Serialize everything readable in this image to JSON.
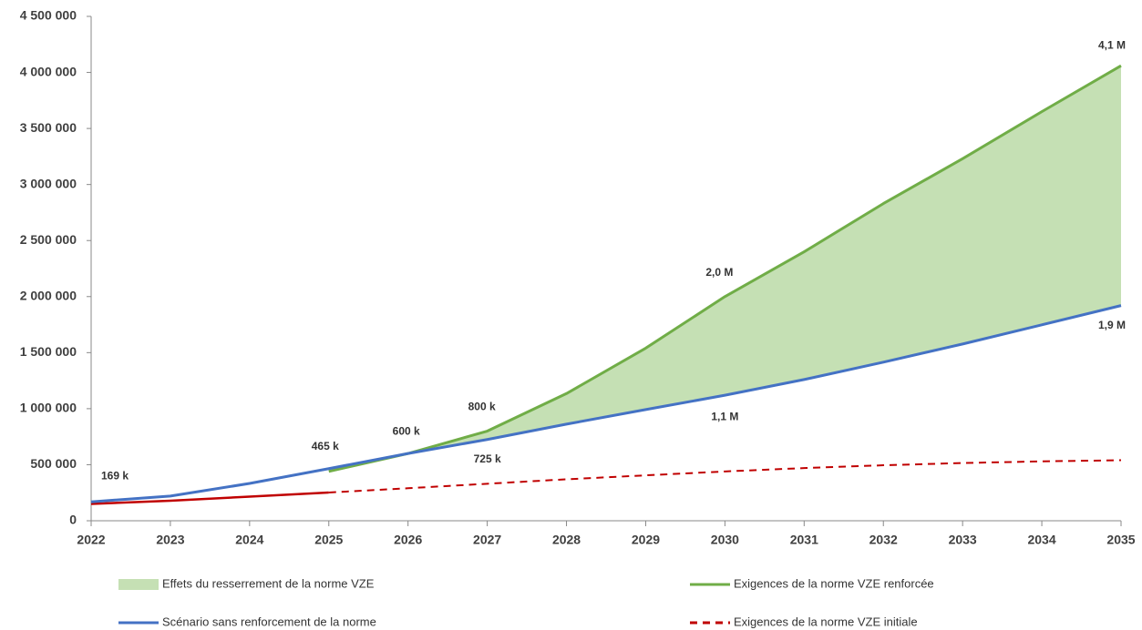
{
  "chart_data": {
    "type": "line",
    "x": [
      2022,
      2023,
      2024,
      2025,
      2026,
      2027,
      2028,
      2029,
      2030,
      2031,
      2032,
      2033,
      2034,
      2035
    ],
    "xlim": [
      2022,
      2035
    ],
    "xticks": [
      2022,
      2023,
      2024,
      2025,
      2026,
      2027,
      2028,
      2029,
      2030,
      2031,
      2032,
      2033,
      2034,
      2035
    ],
    "ylim": [
      0,
      4500000
    ],
    "yticks": [
      0,
      {
        "value": 500000,
        "label": "500 000"
      },
      {
        "value": 1000000,
        "label": "1 000 000"
      },
      {
        "value": 1500000,
        "label": "1 500 000"
      },
      {
        "value": 2000000,
        "label": "2 000 000"
      },
      {
        "value": 2500000,
        "label": "2 500 000"
      },
      {
        "value": 3000000,
        "label": "3 000 000"
      },
      {
        "value": 3500000,
        "label": "3 500 000"
      },
      {
        "value": 4000000,
        "label": "4 000 000"
      },
      {
        "value": 4500000,
        "label": "4 500 000"
      }
    ],
    "series": [
      {
        "name": "Effets du resserrement de la norme VZE",
        "color": "#c5e0b4",
        "type": "area"
      },
      {
        "name": "Exigences de la norme VZE renforcée",
        "color": "#70ad47",
        "values": [
          null,
          null,
          null,
          440000,
          600000,
          800000,
          1135000,
          1540000,
          2000000,
          2400000,
          2830000,
          3230000,
          3650000,
          4060000
        ],
        "value_labels": [
          null,
          null,
          null,
          null,
          null,
          "800 k",
          null,
          null,
          "2,0 M",
          null,
          null,
          null,
          null,
          "4,1 M"
        ]
      },
      {
        "name": "Scénario sans renforcement de la norme",
        "color": "#4472c4",
        "values": [
          169000,
          220000,
          333000,
          465000,
          600000,
          725000,
          862000,
          992000,
          1120000,
          1260000,
          1415000,
          1577000,
          1748000,
          1920000
        ],
        "value_labels": [
          "169 k",
          null,
          null,
          "465 k",
          "600 k",
          "725 k",
          null,
          null,
          "1,1 M",
          null,
          null,
          null,
          null,
          "1,9 M"
        ]
      },
      {
        "name": "Exigences de la norme VZE initiale",
        "color": "#c00000",
        "dash_from": 2025,
        "values": [
          150000,
          179000,
          215000,
          252000,
          290000,
          330000,
          370000,
          405000,
          440000,
          470000,
          495000,
          515000,
          530000,
          540000
        ]
      }
    ]
  }
}
